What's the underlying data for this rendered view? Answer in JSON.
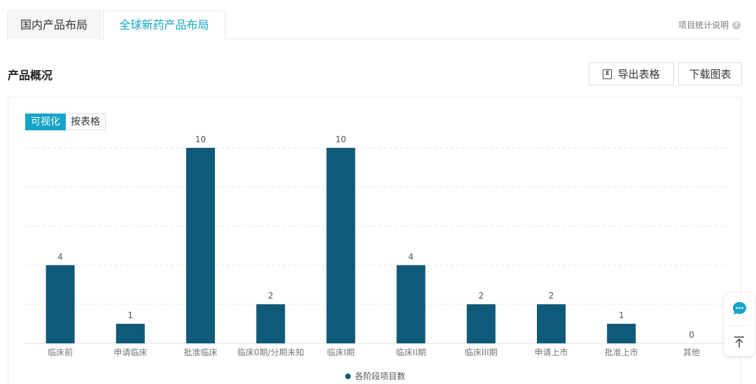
{
  "tabs": {
    "domestic": "国内产品布局",
    "global": "全球新药产品布局"
  },
  "stats_help": {
    "label": "项目统计说明",
    "icon": "question-icon"
  },
  "section": {
    "title": "产品概况"
  },
  "buttons": {
    "export": "导出表格",
    "export_icon": "excel-icon",
    "download": "下载图表"
  },
  "view_toggle": {
    "visual": "可视化",
    "table": "按表格"
  },
  "accent_color": "#14a5c8",
  "chart_data": {
    "type": "bar",
    "categories": [
      "临床前",
      "申请临床",
      "批准临床",
      "临床0期/分期未知",
      "临床I期",
      "临床II期",
      "临床III期",
      "申请上市",
      "批准上市",
      "其他"
    ],
    "series": [
      {
        "name": "各阶段项目数",
        "values": [
          4,
          1,
          10,
          2,
          10,
          4,
          2,
          2,
          1,
          0
        ],
        "color": "#0f5a78"
      }
    ],
    "ylim": [
      0,
      10
    ],
    "grid": true,
    "legend": "bottom-center",
    "data_labels": true
  },
  "float_actions": {
    "chat_icon": "chat-bubble-icon",
    "top_icon": "back-to-top-icon"
  }
}
